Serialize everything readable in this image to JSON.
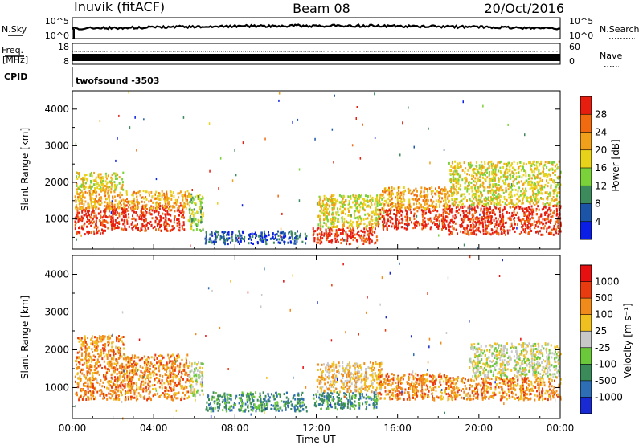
{
  "header": {
    "station": "Inuvik (fitACF)",
    "beam": "Beam 08",
    "date": "20/Oct/2016"
  },
  "strips": {
    "nsky": {
      "label": "N.Sky",
      "ticks": [
        "10^5",
        "10^0"
      ]
    },
    "nsearch": {
      "label": "N.Search",
      "ticks": [
        "10^5",
        "10^0"
      ]
    },
    "freq": {
      "label_top": "Freq.",
      "label_unit": "[MHz]",
      "ticks": [
        "18",
        "8"
      ]
    },
    "nave": {
      "label": "Nave",
      "ticks": [
        "60",
        "0"
      ]
    },
    "cpid": {
      "label": "CPID",
      "text": "twofsound -3503"
    }
  },
  "chart_data": [
    {
      "type": "heatmap",
      "name": "power",
      "ylabel": "Slant Range [km]",
      "ylim": [
        180,
        4500
      ],
      "yticks": [
        1000,
        2000,
        3000,
        4000
      ],
      "xlim": [
        0,
        24
      ],
      "colorbar": {
        "label": "Power [dB]",
        "ticks": [
          "4",
          "8",
          "12",
          "16",
          "20",
          "24",
          "28"
        ],
        "colors": [
          "#0a1ee6",
          "#1c55a8",
          "#3d8a5c",
          "#7ad13a",
          "#e8d21a",
          "#f0a01a",
          "#f06a0f",
          "#e61e10"
        ]
      },
      "regions": [
        {
          "t0": 0.1,
          "t1": 1.5,
          "r0": 600,
          "r1": 1300,
          "level": 7
        },
        {
          "t0": 1.5,
          "t1": 5.5,
          "r0": 700,
          "r1": 1400,
          "level": 7
        },
        {
          "t0": 0.1,
          "t1": 5.7,
          "r0": 1300,
          "r1": 1800,
          "level": 5
        },
        {
          "t0": 0.1,
          "t1": 2.5,
          "r0": 1800,
          "r1": 2300,
          "level": 4
        },
        {
          "t0": 5.7,
          "t1": 6.4,
          "r0": 700,
          "r1": 1700,
          "level": 3
        },
        {
          "t0": 6.5,
          "t1": 11.5,
          "r0": 350,
          "r1": 700,
          "level": 1
        },
        {
          "t0": 11.8,
          "t1": 15.0,
          "r0": 350,
          "r1": 800,
          "level": 7
        },
        {
          "t0": 12.0,
          "t1": 15.3,
          "r0": 800,
          "r1": 1700,
          "level": 4
        },
        {
          "t0": 15.0,
          "t1": 18.5,
          "r0": 750,
          "r1": 1300,
          "level": 7
        },
        {
          "t0": 15.0,
          "t1": 18.5,
          "r0": 1300,
          "r1": 1900,
          "level": 5
        },
        {
          "t0": 18.5,
          "t1": 24.0,
          "r0": 600,
          "r1": 1400,
          "level": 7
        },
        {
          "t0": 18.5,
          "t1": 24.0,
          "r0": 1400,
          "r1": 2600,
          "level": 4
        }
      ]
    },
    {
      "type": "heatmap",
      "name": "velocity",
      "ylabel": "Slant Range [km]",
      "xlabel": "Time UT",
      "ylim": [
        180,
        4500
      ],
      "yticks": [
        1000,
        2000,
        3000,
        4000
      ],
      "xlim": [
        0,
        24
      ],
      "xticks": [
        "00:00",
        "04:00",
        "08:00",
        "12:00",
        "16:00",
        "20:00",
        "00:00"
      ],
      "colorbar": {
        "label": "Velocity [m s⁻¹]",
        "ticks": [
          "1000",
          "500",
          "100",
          "25",
          "-25",
          "-100",
          "-500",
          "-1000"
        ],
        "colors": [
          "#1a2ad2",
          "#2e6eb4",
          "#3a8a5a",
          "#6ac83a",
          "#c8c8c8",
          "#f0c020",
          "#f08a1a",
          "#e83c10",
          "#e61010"
        ]
      },
      "regions": [
        {
          "t0": 0.1,
          "t1": 5.7,
          "r0": 700,
          "r1": 1900,
          "level": 6
        },
        {
          "t0": 0.2,
          "t1": 2.5,
          "r0": 1900,
          "r1": 2400,
          "level": 6
        },
        {
          "t0": 5.7,
          "t1": 6.4,
          "r0": 800,
          "r1": 1700,
          "level": 4
        },
        {
          "t0": 6.5,
          "t1": 11.5,
          "r0": 400,
          "r1": 900,
          "level": 2
        },
        {
          "t0": 11.8,
          "t1": 15.0,
          "r0": 450,
          "r1": 900,
          "level": 2
        },
        {
          "t0": 12.0,
          "t1": 15.2,
          "r0": 900,
          "r1": 1700,
          "level": 5
        },
        {
          "t0": 15.0,
          "t1": 18.5,
          "r0": 700,
          "r1": 1400,
          "level": 6
        },
        {
          "t0": 18.5,
          "t1": 24.0,
          "r0": 700,
          "r1": 1300,
          "level": 6
        },
        {
          "t0": 19.5,
          "t1": 24.0,
          "r0": 1300,
          "r1": 2200,
          "level": 4
        }
      ]
    }
  ]
}
